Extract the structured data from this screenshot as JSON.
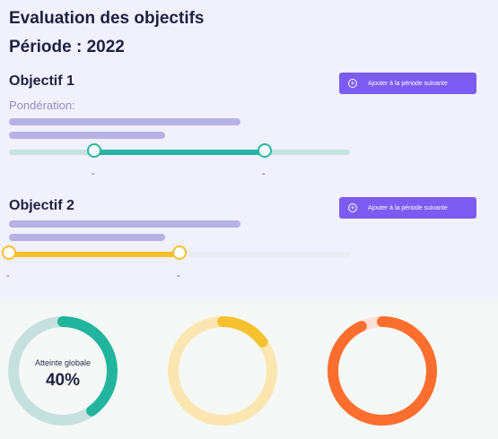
{
  "header": {
    "title": "Evaluation des objectifs",
    "period": "Période : 2022"
  },
  "objectives": [
    {
      "title": "Objectif 1",
      "weight_label": "Pondération:",
      "button_label": "Ajouter à la période suivante",
      "slider": {
        "low_fraction": 0.25,
        "high_fraction": 0.75,
        "low_label": "-",
        "high_label": "-",
        "track_color": "#c6e3e1",
        "fill_color": "#26b5a0"
      }
    },
    {
      "title": "Objectif 2",
      "button_label": "Ajouter à la période suivante",
      "slider": {
        "low_fraction": 0.0,
        "high_fraction": 0.5,
        "low_label": "-",
        "high_label": "-",
        "track_color": "#ececf3",
        "fill_color": "#f6c02b"
      }
    }
  ],
  "donuts": [
    {
      "label": "Atteinte globale",
      "value_text": "40%",
      "fraction": 0.4,
      "color": "#22b59d",
      "track_color": "#c6e0de"
    },
    {
      "fraction": 0.15,
      "color": "#f5c12e",
      "track_color": "#fbe6b2"
    },
    {
      "fraction": 0.93,
      "color": "#fb6e2d",
      "track_color": "#fde0d5"
    }
  ]
}
